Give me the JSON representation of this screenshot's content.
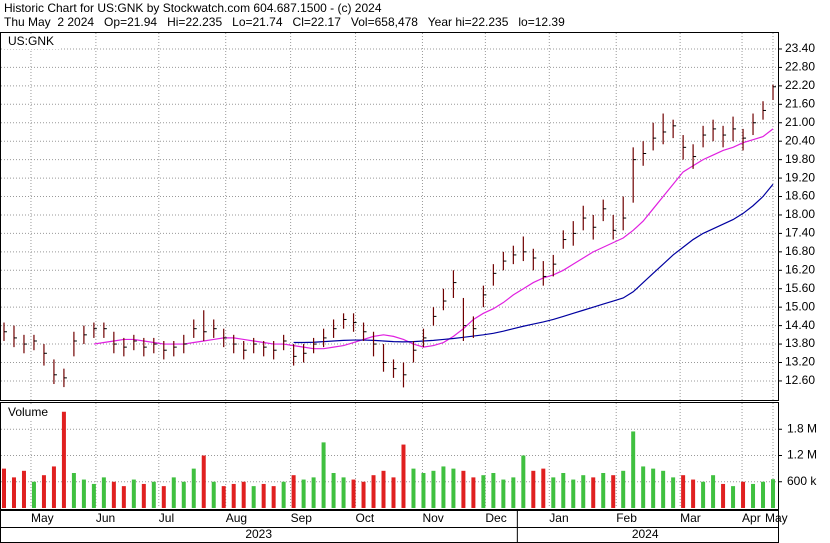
{
  "chart_data": {
    "type": "ohlc",
    "header": [
      "Historic Chart for US:GNK by Stockwatch.com 604.687.1500 - (c) 2024",
      "Thu May  2 2024   Op=21.94   Hi=22.235   Lo=21.74   Cl=22.17   Vol=658,478   Year hi=22.235   lo=12.39"
    ],
    "symbol": "US:GNK",
    "volume_title": "Volume",
    "xlim": [
      -0.3,
      77.5
    ],
    "xticks": [
      {
        "value": 2.7,
        "label": "May"
      },
      {
        "value": 9.2,
        "label": "Jun"
      },
      {
        "value": 15.5,
        "label": "Jul"
      },
      {
        "value": 22.2,
        "label": "Aug"
      },
      {
        "value": 28.7,
        "label": "Sep"
      },
      {
        "value": 35.2,
        "label": "Oct"
      },
      {
        "value": 41.9,
        "label": "Nov"
      },
      {
        "value": 48.2,
        "label": "Dec"
      },
      {
        "value": 54.6,
        "label": "Jan"
      },
      {
        "value": 61.3,
        "label": "Feb"
      },
      {
        "value": 67.7,
        "label": "Mar"
      },
      {
        "value": 73.9,
        "label": "Apr"
      },
      {
        "value": 77,
        "label": "May"
      }
    ],
    "years": [
      {
        "value": 25.5,
        "label": "2023"
      },
      {
        "value": 64.2,
        "label": "2024"
      }
    ],
    "year_split": 51.4,
    "ylim": [
      11.98,
      23.92
    ],
    "yticks": [
      {
        "value": 12.6,
        "label": "12.60"
      },
      {
        "value": 13.2,
        "label": "13.20"
      },
      {
        "value": 13.8,
        "label": "13.80"
      },
      {
        "value": 14.4,
        "label": "14.40"
      },
      {
        "value": 15,
        "label": "15.00"
      },
      {
        "value": 15.6,
        "label": "15.60"
      },
      {
        "value": 16.2,
        "label": "16.20"
      },
      {
        "value": 16.8,
        "label": "16.80"
      },
      {
        "value": 17.4,
        "label": "17.40"
      },
      {
        "value": 18,
        "label": "18.00"
      },
      {
        "value": 18.6,
        "label": "18.60"
      },
      {
        "value": 19.2,
        "label": "19.20"
      },
      {
        "value": 19.8,
        "label": "19.80"
      },
      {
        "value": 20.4,
        "label": "20.40"
      },
      {
        "value": 21,
        "label": "21.00"
      },
      {
        "value": 21.6,
        "label": "21.60"
      },
      {
        "value": 22.2,
        "label": "22.20"
      },
      {
        "value": 22.8,
        "label": "22.80"
      },
      {
        "value": 23.4,
        "label": "23.40"
      }
    ],
    "bar_color": "#700000",
    "high": [
      14.5,
      14.4,
      14.1,
      14.1,
      13.8,
      13.3,
      13.0,
      14.2,
      14.4,
      14.5,
      14.5,
      14.2,
      14.0,
      14.1,
      14.0,
      14.0,
      13.9,
      13.9,
      14.1,
      14.6,
      14.9,
      14.6,
      14.3,
      14.1,
      13.9,
      14.0,
      13.9,
      13.9,
      14.1,
      13.8,
      13.8,
      14.0,
      14.3,
      14.6,
      14.8,
      14.8,
      14.5,
      14.2,
      13.8,
      13.3,
      13.2,
      13.9,
      14.3,
      15.0,
      15.6,
      16.2,
      15.3,
      14.7,
      15.7,
      16.4,
      16.8,
      17.0,
      17.3,
      16.9,
      16.5,
      16.7,
      17.5,
      17.8,
      18.3,
      18.0,
      18.5,
      18.0,
      18.6,
      20.2,
      20.4,
      21.0,
      21.3,
      21.1,
      20.6,
      20.3,
      20.9,
      21.1,
      20.9,
      21.2,
      20.8,
      21.3,
      21.7,
      22.235
    ],
    "low": [
      13.9,
      13.7,
      13.5,
      13.6,
      13.1,
      12.5,
      12.4,
      13.4,
      13.8,
      14.0,
      14.0,
      13.5,
      13.4,
      13.6,
      13.4,
      13.5,
      13.3,
      13.4,
      13.5,
      14.0,
      13.9,
      14.0,
      13.7,
      13.5,
      13.3,
      13.5,
      13.4,
      13.3,
      13.6,
      13.1,
      13.2,
      13.5,
      13.7,
      14.0,
      14.3,
      14.2,
      13.9,
      13.4,
      12.9,
      12.7,
      12.39,
      13.2,
      13.7,
      14.4,
      14.9,
      15.3,
      13.9,
      14.0,
      15.0,
      15.7,
      16.2,
      16.4,
      16.5,
      16.2,
      15.7,
      16.0,
      16.9,
      17.0,
      17.5,
      17.2,
      17.8,
      17.2,
      17.5,
      18.4,
      19.6,
      20.1,
      20.3,
      20.5,
      19.8,
      19.5,
      20.2,
      20.4,
      20.2,
      20.4,
      20.1,
      20.6,
      21.1,
      21.74
    ],
    "close": [
      14.2,
      14.0,
      13.8,
      13.9,
      13.5,
      12.8,
      12.7,
      13.9,
      14.1,
      14.3,
      14.3,
      13.8,
      13.7,
      13.9,
      13.7,
      13.8,
      13.6,
      13.7,
      13.8,
      14.3,
      14.2,
      14.3,
      14.0,
      13.8,
      13.6,
      13.8,
      13.7,
      13.6,
      13.9,
      13.4,
      13.5,
      13.8,
      14.0,
      14.3,
      14.6,
      14.5,
      14.2,
      13.8,
      13.2,
      13.0,
      12.8,
      13.6,
      14.0,
      14.7,
      15.2,
      15.8,
      14.4,
      14.3,
      15.4,
      16.1,
      16.5,
      16.7,
      16.8,
      16.6,
      16.0,
      16.4,
      17.2,
      17.4,
      17.9,
      17.6,
      18.2,
      17.5,
      17.9,
      19.8,
      20.0,
      20.5,
      20.7,
      20.9,
      20.2,
      19.9,
      20.6,
      20.8,
      20.6,
      20.8,
      20.5,
      21.0,
      21.4,
      22.17
    ],
    "averages": [
      {
        "color": "#e020e0",
        "start": 9,
        "values": [
          13.8,
          13.85,
          13.9,
          13.95,
          13.95,
          13.9,
          13.85,
          13.8,
          13.8,
          13.8,
          13.85,
          13.9,
          13.95,
          14.0,
          14.0,
          13.95,
          13.9,
          13.85,
          13.8,
          13.8,
          13.75,
          13.7,
          13.65,
          13.65,
          13.7,
          13.75,
          13.85,
          13.95,
          14.05,
          14.1,
          14.05,
          13.95,
          13.8,
          13.7,
          13.75,
          13.85,
          14.05,
          14.3,
          14.6,
          14.8,
          14.95,
          15.15,
          15.4,
          15.6,
          15.8,
          15.95,
          16.05,
          16.2,
          16.4,
          16.6,
          16.8,
          16.95,
          17.1,
          17.25,
          17.5,
          17.8,
          18.2,
          18.6,
          19.0,
          19.4,
          19.6,
          19.8,
          19.95,
          20.1,
          20.2,
          20.35,
          20.45,
          20.55,
          20.8
        ]
      },
      {
        "color": "#0000a0",
        "start": 29,
        "values": [
          13.85,
          13.85,
          13.86,
          13.88,
          13.9,
          13.92,
          13.93,
          13.93,
          13.92,
          13.9,
          13.88,
          13.87,
          13.88,
          13.9,
          13.92,
          13.95,
          13.98,
          14.02,
          14.06,
          14.1,
          14.15,
          14.22,
          14.3,
          14.38,
          14.45,
          14.52,
          14.6,
          14.7,
          14.8,
          14.9,
          15.0,
          15.1,
          15.2,
          15.3,
          15.5,
          15.8,
          16.1,
          16.4,
          16.7,
          16.95,
          17.2,
          17.4,
          17.55,
          17.7,
          17.85,
          18.05,
          18.3,
          18.6,
          19.0
        ]
      }
    ],
    "volume": [
      900000,
      700000,
      850000,
      600000,
      750000,
      950000,
      2200000,
      800000,
      650000,
      550000,
      700000,
      600000,
      500000,
      650000,
      550000,
      600000,
      500000,
      700000,
      600000,
      900000,
      1200000,
      600000,
      500000,
      550000,
      600000,
      500000,
      550000,
      500000,
      600000,
      750000,
      650000,
      700000,
      1500000,
      800000,
      700000,
      650000,
      600000,
      750000,
      850000,
      700000,
      1450000,
      900000,
      800000,
      850000,
      950000,
      900000,
      850000,
      700000,
      750000,
      800000,
      650000,
      700000,
      1200000,
      850000,
      900000,
      700000,
      800000,
      650000,
      750000,
      700000,
      800000,
      750000,
      850000,
      1750000,
      950000,
      900000,
      850000,
      700000,
      750000,
      650000,
      600000,
      750000,
      550000,
      500000,
      600000,
      550000,
      600000,
      658478
    ],
    "volume_colors": {
      "up": "#40c040",
      "down": "#e02020"
    },
    "vlim": [
      0,
      2400000
    ],
    "vticks": [
      {
        "value": 600000,
        "label": "600 k"
      },
      {
        "value": 1200000,
        "label": "1.2 M"
      },
      {
        "value": 1800000,
        "label": "1.8 M"
      }
    ],
    "grid": true
  }
}
